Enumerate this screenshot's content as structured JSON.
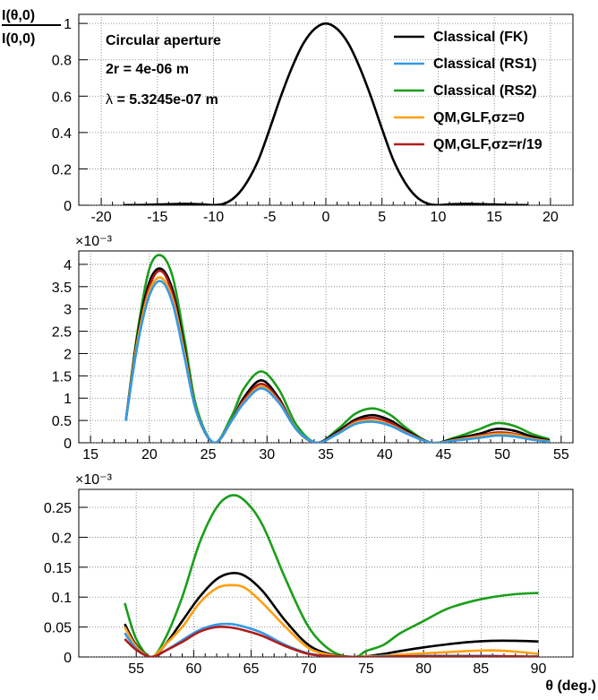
{
  "figure": {
    "ylabel_num": "I(θ,0)",
    "ylabel_den": "I(0,0)",
    "xlabel": "θ (deg.)"
  },
  "annotations": {
    "line1": "Circular aperture",
    "line2": "2r = 4e-06 m",
    "line3_symbol": "λ",
    "line3_rest": " =  5.3245e-07 m"
  },
  "legend": [
    {
      "label": "Classical (FK)",
      "color": "#000000"
    },
    {
      "label": "Classical (RS1)",
      "color": "#3399e6"
    },
    {
      "label": "Classical (RS2)",
      "color": "#1a9e1a"
    },
    {
      "label": "QM,GLF,σz=0",
      "color": "#ff9f10"
    },
    {
      "label": "QM,GLF,σz=r/19",
      "color": "#b01c1c"
    }
  ],
  "chart_data": [
    {
      "type": "line",
      "title": "",
      "xlim": [
        -22,
        22
      ],
      "ylim": [
        0,
        1.05
      ],
      "grid": true,
      "xticks": [
        -20,
        -15,
        -10,
        -5,
        0,
        5,
        10,
        15,
        20
      ],
      "yticks": [
        0,
        0.2,
        0.4,
        0.6,
        0.8,
        1
      ],
      "xtick_labels": [
        "-20",
        "-15",
        "-10",
        "-5",
        "0",
        "5",
        "10",
        "15",
        "20"
      ],
      "ytick_labels": [
        "0",
        "0.2",
        "0.4",
        "0.6",
        "0.8",
        "1"
      ],
      "exponent_label": "",
      "series": [
        {
          "name": "Classical (FK)",
          "color": "#000000",
          "x": [
            -18,
            -16,
            -14,
            -12.5,
            -11,
            -10,
            -9,
            -8,
            -7,
            -6,
            -5,
            -4,
            -3,
            -2,
            -1,
            0,
            1,
            2,
            3,
            4,
            5,
            6,
            7,
            8,
            9,
            10,
            11,
            12.5,
            14,
            16,
            18
          ],
          "y": [
            0.0005,
            0.002,
            0.006,
            0.008,
            0.005,
            0.001,
            0.01,
            0.05,
            0.13,
            0.25,
            0.42,
            0.6,
            0.76,
            0.89,
            0.97,
            1.0,
            0.97,
            0.89,
            0.76,
            0.6,
            0.42,
            0.25,
            0.13,
            0.05,
            0.01,
            0.001,
            0.005,
            0.008,
            0.006,
            0.002,
            0.0005
          ]
        }
      ]
    },
    {
      "type": "line",
      "title": "",
      "xlim": [
        14,
        56
      ],
      "ylim": [
        0,
        0.0043
      ],
      "grid": true,
      "xticks": [
        15,
        20,
        25,
        30,
        35,
        40,
        45,
        50,
        55
      ],
      "yticks": [
        0,
        0.0005,
        0.001,
        0.0015,
        0.002,
        0.0025,
        0.003,
        0.0035,
        0.004
      ],
      "xtick_labels": [
        "15",
        "20",
        "25",
        "30",
        "35",
        "40",
        "45",
        "50",
        "55"
      ],
      "ytick_labels": [
        "0",
        "0.5",
        "1",
        "1.5",
        "2",
        "2.5",
        "3",
        "3.5",
        "4"
      ],
      "exponent_label": "×10⁻³",
      "series": [
        {
          "name": "Classical (RS2)",
          "color": "#1a9e1a",
          "x": [
            18,
            19,
            20,
            21,
            22,
            23,
            24,
            25.5,
            27,
            28,
            29.5,
            31,
            32.5,
            34.2,
            36,
            37.5,
            39,
            40.5,
            42,
            44,
            46,
            48,
            49.5,
            51,
            52.5,
            54
          ],
          "y": [
            0.0005,
            0.0025,
            0.0039,
            0.0042,
            0.0037,
            0.0023,
            0.0008,
            0.0,
            0.0006,
            0.0012,
            0.0016,
            0.0012,
            0.0004,
            0.0,
            0.0003,
            0.00065,
            0.00077,
            0.00062,
            0.0003,
            0.0,
            0.00012,
            0.0003,
            0.00044,
            0.00038,
            0.0002,
            8e-05
          ]
        },
        {
          "name": "Classical (FK)",
          "color": "#000000",
          "x": [
            18,
            19,
            20,
            21,
            22,
            23,
            24,
            25.5,
            27,
            28,
            29.5,
            31,
            32.5,
            34.2,
            36,
            37.5,
            39,
            40.5,
            42,
            44,
            46,
            48,
            49.5,
            51,
            52.5,
            54
          ],
          "y": [
            0.0005,
            0.0024,
            0.0036,
            0.0039,
            0.0034,
            0.0021,
            0.0007,
            0.0,
            0.0005,
            0.001,
            0.0014,
            0.001,
            0.0003,
            0.0,
            0.00025,
            0.00052,
            0.00062,
            0.0005,
            0.00025,
            0.0,
            9e-05,
            0.0002,
            0.00031,
            0.00027,
            0.00014,
            5e-05
          ]
        },
        {
          "name": "QM,GLF,σz=r/19",
          "color": "#b01c1c",
          "x": [
            18,
            19,
            20,
            21,
            22,
            23,
            24,
            25.5,
            27,
            28,
            29.5,
            31,
            32.5,
            34.2,
            36,
            37.5,
            39,
            40.5,
            42,
            44,
            46,
            48,
            49.5,
            51,
            52.5,
            54
          ],
          "y": [
            0.0005,
            0.0023,
            0.0035,
            0.00385,
            0.0033,
            0.002,
            0.0007,
            0.0,
            0.0005,
            0.00095,
            0.00132,
            0.00096,
            0.0003,
            0.0,
            0.00022,
            0.00048,
            0.00056,
            0.00045,
            0.00022,
            0.0,
            7e-05,
            0.00016,
            0.00023,
            0.0002,
            0.0001,
            4e-05
          ]
        },
        {
          "name": "QM,GLF,σz=0",
          "color": "#ff9f10",
          "x": [
            18,
            19,
            20,
            21,
            22,
            23,
            24,
            25.5,
            27,
            28,
            29.5,
            31,
            32.5,
            34.2,
            36,
            37.5,
            39,
            40.5,
            42,
            44,
            46,
            48,
            49.5,
            51,
            52.5,
            54
          ],
          "y": [
            0.0005,
            0.0023,
            0.0034,
            0.0037,
            0.0032,
            0.002,
            0.0007,
            0.0,
            0.0005,
            0.0009,
            0.00126,
            0.00092,
            0.0003,
            0.0,
            0.0002,
            0.00045,
            0.0005,
            0.0004,
            0.0002,
            0.0,
            6e-05,
            0.00014,
            0.0002,
            0.00018,
            9e-05,
            3e-05
          ]
        },
        {
          "name": "Classical (RS1)",
          "color": "#3399e6",
          "x": [
            18,
            19,
            20,
            21,
            22,
            23,
            24,
            25.5,
            27,
            28,
            29.5,
            31,
            32.5,
            34.2,
            36,
            37.5,
            39,
            40.5,
            42,
            44,
            46,
            48,
            49.5,
            51,
            52.5,
            54
          ],
          "y": [
            0.0005,
            0.0022,
            0.0033,
            0.00362,
            0.0031,
            0.0019,
            0.0007,
            0.0,
            0.0005,
            0.00088,
            0.00122,
            0.0009,
            0.0003,
            0.0,
            0.0002,
            0.00042,
            0.00047,
            0.00038,
            0.00019,
            0.0,
            5e-05,
            0.00011,
            0.00016,
            0.00014,
            7e-05,
            2e-05
          ]
        }
      ]
    },
    {
      "type": "line",
      "title": "",
      "xlim": [
        50,
        93
      ],
      "ylim": [
        0,
        0.00028
      ],
      "grid": true,
      "xticks": [
        55,
        60,
        65,
        70,
        75,
        80,
        85,
        90
      ],
      "yticks": [
        0,
        5e-05,
        0.0001,
        0.00015,
        0.0002,
        0.00025
      ],
      "xtick_labels": [
        "55",
        "60",
        "65",
        "70",
        "75",
        "80",
        "85",
        "90"
      ],
      "ytick_labels": [
        "0",
        "0.05",
        "0.1",
        "0.15",
        "0.2",
        "0.25"
      ],
      "exponent_label": "×10⁻³",
      "series": [
        {
          "name": "Classical (RS2)",
          "color": "#1a9e1a",
          "x": [
            54,
            55,
            56.3,
            57.5,
            59,
            60.5,
            62,
            63.3,
            64.5,
            66,
            68,
            70,
            72,
            74,
            75,
            76.5,
            78,
            80,
            82,
            84,
            86,
            88,
            90
          ],
          "y": [
            9e-05,
            3e-05,
            0.0,
            3e-05,
            0.0001,
            0.00019,
            0.00025,
            0.00027,
            0.00026,
            0.00022,
            0.00013,
            5e-05,
            1e-05,
            0.0,
            1e-05,
            2e-05,
            4e-05,
            6e-05,
            8e-05,
            9.2e-05,
            0.0001,
            0.000105,
            0.000107
          ]
        },
        {
          "name": "Classical (FK)",
          "color": "#000000",
          "x": [
            54,
            55,
            56.3,
            57.5,
            59,
            60.5,
            62,
            63.3,
            64.5,
            66,
            68,
            70,
            72,
            74,
            75,
            76.5,
            78,
            80,
            82,
            84,
            86,
            88,
            90
          ],
          "y": [
            5.5e-05,
            2e-05,
            0.0,
            2e-05,
            6e-05,
            0.0001,
            0.00013,
            0.00014,
            0.000135,
            0.00011,
            6e-05,
            2e-05,
            4e-06,
            0.0,
            1e-06,
            5e-06,
            1e-05,
            1.6e-05,
            2.1e-05,
            2.5e-05,
            2.7e-05,
            2.7e-05,
            2.6e-05
          ]
        },
        {
          "name": "QM,GLF,σz=0",
          "color": "#ff9f10",
          "x": [
            54,
            55,
            56.3,
            57.5,
            59,
            60.5,
            62,
            63.3,
            64.5,
            66,
            68,
            70,
            72,
            74,
            75,
            76.5,
            78,
            80,
            82,
            84,
            86,
            88,
            90
          ],
          "y": [
            5e-05,
            1.8e-05,
            0.0,
            2e-05,
            5e-05,
            9e-05,
            0.000115,
            0.00012,
            0.000115,
            9e-05,
            5e-05,
            1.5e-05,
            3e-06,
            0.0,
            1e-06,
            2e-06,
            4e-06,
            6e-06,
            8e-06,
            1e-05,
            1.1e-05,
            9e-06,
            5e-06
          ]
        },
        {
          "name": "Classical (RS1)",
          "color": "#3399e6",
          "x": [
            54,
            55,
            56.3,
            57.5,
            59,
            60.5,
            62,
            63.3,
            64.5,
            66,
            68,
            70,
            72,
            74,
            75,
            76.5,
            78,
            80,
            82,
            84,
            86,
            88,
            90
          ],
          "y": [
            4e-05,
            1.4e-05,
            0.0,
            1e-05,
            2.8e-05,
            4.5e-05,
            5.4e-05,
            5.5e-05,
            5e-05,
            4e-05,
            2e-05,
            6e-06,
            1e-06,
            0.0,
            0.0,
            1e-06,
            1e-06,
            2e-06,
            2e-06,
            2e-06,
            2e-06,
            1e-06,
            1e-06
          ]
        },
        {
          "name": "QM,GLF,σz=r/19",
          "color": "#b01c1c",
          "x": [
            54,
            55,
            56.3,
            57.5,
            59,
            60.5,
            62,
            63.3,
            64.5,
            66,
            68,
            70,
            72,
            74,
            75,
            76.5,
            78,
            80,
            82,
            84,
            86,
            88,
            90
          ],
          "y": [
            3e-05,
            1.2e-05,
            0.0,
            1e-05,
            2.5e-05,
            4.2e-05,
            5e-05,
            4.9e-05,
            4.4e-05,
            3.5e-05,
            1.8e-05,
            5e-06,
            1e-06,
            0.0,
            0.0,
            0.0,
            1e-06,
            1e-06,
            1e-06,
            1e-06,
            1e-06,
            1e-06,
            0.0
          ]
        }
      ]
    }
  ]
}
